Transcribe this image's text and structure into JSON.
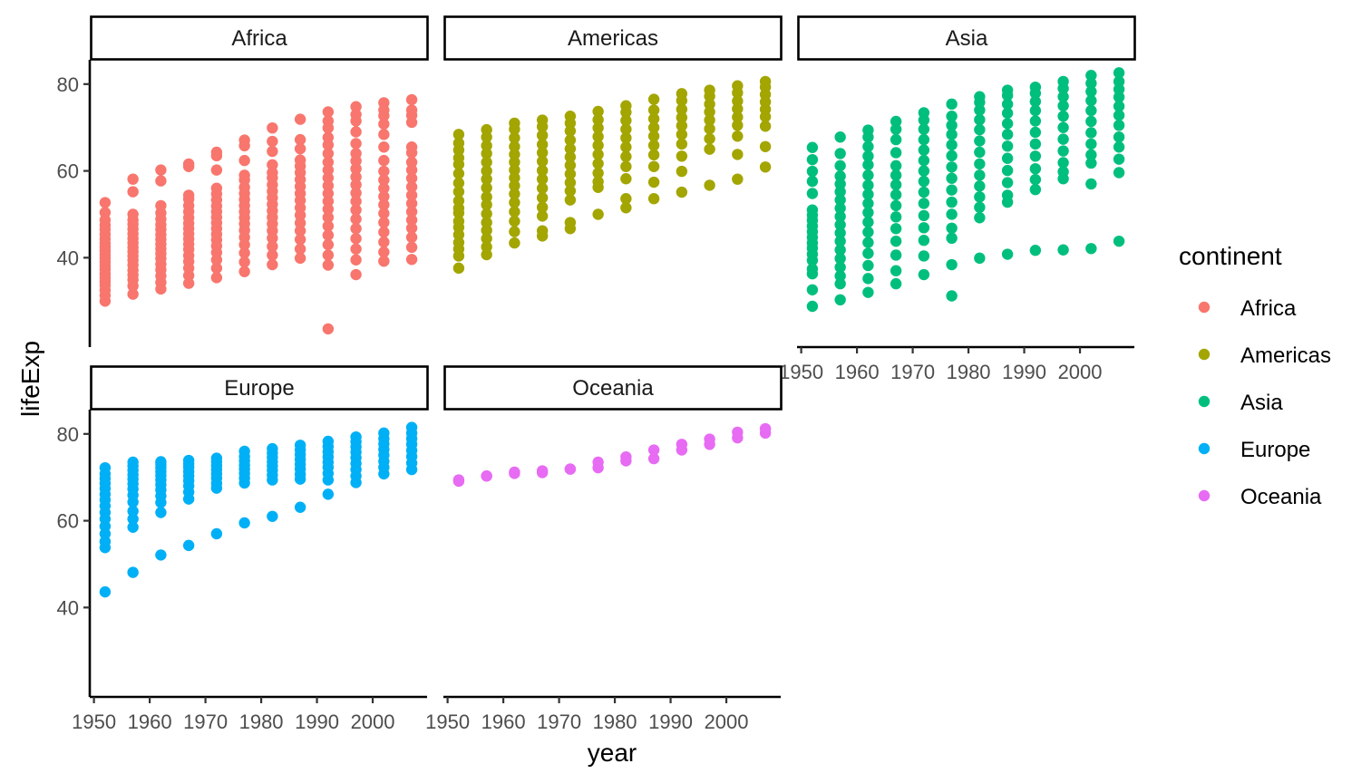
{
  "chart_data": {
    "type": "scatter",
    "facet_by": "continent",
    "xlabel": "year",
    "ylabel": "lifeExp",
    "xlim": [
      1949.25,
      2009.75
    ],
    "ylim": [
      19.4,
      85.6
    ],
    "x_ticks": [
      1950,
      1960,
      1970,
      1980,
      1990,
      2000
    ],
    "y_ticks": [
      40,
      60,
      80
    ],
    "legend": {
      "title": "continent",
      "position": "right"
    },
    "grid": false,
    "series": [
      {
        "name": "Africa",
        "color": "#F8766D",
        "columns": [
          {
            "year": 1952,
            "values": [
              30.0,
              31.3,
              32.5,
              33.6,
              34.5,
              35.4,
              36.3,
              37.3,
              38.1,
              39.0,
              39.9,
              40.7,
              41.6,
              42.5,
              43.3,
              44.3,
              45.4,
              46.5,
              47.5,
              48.7,
              50.4,
              52.7
            ]
          },
          {
            "year": 1957,
            "values": [
              31.6,
              33.5,
              34.9,
              36.0,
              37.1,
              38.3,
              39.4,
              40.4,
              41.4,
              42.4,
              43.4,
              44.4,
              45.5,
              46.6,
              47.7,
              48.7,
              50.0,
              55.2,
              58.1
            ]
          },
          {
            "year": 1962,
            "values": [
              32.8,
              34.3,
              35.8,
              37.2,
              38.5,
              39.8,
              40.9,
              42.0,
              43.1,
              44.2,
              45.3,
              46.5,
              47.6,
              48.9,
              50.3,
              52.0,
              57.7,
              60.2
            ]
          },
          {
            "year": 1967,
            "values": [
              34.1,
              35.9,
              37.6,
              39.1,
              40.5,
              41.9,
              43.1,
              44.3,
              45.5,
              46.7,
              47.9,
              49.2,
              50.6,
              52.0,
              53.5,
              54.4,
              61.0,
              61.6
            ]
          },
          {
            "year": 1972,
            "values": [
              35.4,
              37.6,
              39.5,
              41.2,
              42.7,
              44.1,
              45.4,
              46.7,
              48.0,
              49.3,
              50.6,
              51.9,
              53.3,
              54.7,
              56.0,
              60.2,
              63.5,
              64.3
            ]
          },
          {
            "year": 1977,
            "values": [
              36.8,
              39.0,
              41.1,
              43.0,
              44.7,
              46.3,
              47.8,
              49.2,
              50.6,
              52.0,
              53.4,
              54.8,
              56.2,
              57.9,
              59.0,
              62.4,
              65.8,
              67.1
            ]
          },
          {
            "year": 1982,
            "values": [
              38.4,
              40.6,
              42.6,
              44.5,
              46.2,
              47.8,
              49.3,
              50.8,
              52.3,
              53.8,
              55.3,
              56.8,
              58.4,
              59.6,
              61.4,
              64.5,
              66.8,
              69.9
            ]
          },
          {
            "year": 1987,
            "values": [
              39.9,
              42.0,
              44.2,
              46.2,
              48.0,
              49.8,
              51.5,
              53.2,
              54.8,
              56.4,
              58.0,
              59.6,
              61.1,
              62.5,
              65.1,
              67.2,
              71.9
            ]
          },
          {
            "year": 1992,
            "values": [
              23.6,
              38.3,
              40.6,
              43.0,
              45.2,
              47.3,
              49.3,
              51.2,
              53.0,
              54.8,
              56.6,
              58.4,
              60.2,
              62.0,
              64.0,
              66.0,
              67.7,
              69.9,
              71.5,
              73.6
            ]
          },
          {
            "year": 1997,
            "values": [
              36.1,
              39.5,
              42.0,
              44.4,
              46.7,
              48.9,
              51.0,
              53.0,
              54.9,
              56.8,
              58.6,
              60.5,
              62.3,
              64.0,
              66.3,
              69.0,
              71.5,
              73.0,
              74.8
            ]
          },
          {
            "year": 2002,
            "values": [
              39.2,
              41.3,
              43.6,
              45.9,
              48.1,
              50.2,
              52.2,
              54.1,
              56.0,
              57.9,
              59.9,
              62.4,
              65.5,
              68.4,
              70.8,
              72.7,
              74.0,
              75.7
            ]
          },
          {
            "year": 2007,
            "values": [
              39.6,
              42.4,
              44.7,
              46.8,
              48.7,
              50.6,
              52.5,
              54.4,
              56.3,
              58.3,
              60.2,
              62.0,
              64.2,
              65.5,
              71.2,
              72.8,
              74.0,
              76.4
            ]
          }
        ]
      },
      {
        "name": "Americas",
        "color": "#A3A500",
        "columns": [
          {
            "year": 1952,
            "values": [
              37.6,
              40.4,
              42.0,
              43.5,
              45.3,
              47.0,
              48.4,
              50.3,
              51.4,
              53.1,
              55.2,
              57.2,
              59.4,
              61.5,
              63.0,
              64.8,
              66.4,
              68.4
            ]
          },
          {
            "year": 1957,
            "values": [
              40.7,
              42.5,
              44.4,
              46.3,
              48.1,
              50.1,
              52.2,
              54.0,
              56.1,
              58.1,
              60.0,
              62.0,
              64.0,
              65.8,
              67.8,
              69.5
            ]
          },
          {
            "year": 1962,
            "values": [
              43.4,
              46.0,
              48.4,
              50.6,
              52.7,
              54.7,
              56.6,
              58.4,
              60.2,
              62.0,
              63.8,
              65.6,
              67.6,
              69.6,
              71.0
            ]
          },
          {
            "year": 1967,
            "values": [
              45.0,
              46.2,
              49.6,
              51.6,
              53.8,
              56.0,
              58.1,
              60.1,
              62.2,
              64.2,
              66.1,
              68.2,
              70.2,
              71.7
            ]
          },
          {
            "year": 1972,
            "values": [
              46.7,
              48.1,
              53.3,
              55.4,
              57.3,
              59.3,
              61.3,
              63.2,
              65.1,
              67.1,
              69.2,
              71.0,
              72.6
            ]
          },
          {
            "year": 1977,
            "values": [
              50.0,
              56.2,
              57.5,
              59.5,
              61.7,
              63.8,
              65.9,
              67.9,
              69.9,
              71.8,
              73.7
            ]
          },
          {
            "year": 1982,
            "values": [
              51.5,
              53.6,
              58.2,
              61.0,
              63.3,
              65.5,
              67.6,
              69.6,
              71.6,
              73.5,
              75.0
            ]
          },
          {
            "year": 1987,
            "values": [
              53.6,
              57.4,
              61.0,
              63.7,
              65.9,
              68.0,
              70.0,
              72.0,
              74.0,
              76.5
            ]
          },
          {
            "year": 1992,
            "values": [
              55.1,
              59.9,
              63.4,
              66.2,
              68.4,
              70.4,
              72.3,
              74.2,
              76.2,
              77.8
            ]
          },
          {
            "year": 1997,
            "values": [
              56.7,
              65.0,
              67.4,
              69.7,
              71.7,
              73.6,
              75.4,
              77.2,
              78.6
            ]
          },
          {
            "year": 2002,
            "values": [
              58.1,
              63.8,
              68.0,
              70.5,
              72.4,
              74.3,
              76.1,
              78.0,
              79.6
            ]
          },
          {
            "year": 2007,
            "values": [
              60.9,
              65.6,
              70.3,
              72.5,
              74.2,
              75.9,
              77.6,
              79.3,
              80.6
            ]
          }
        ]
      },
      {
        "name": "Asia",
        "color": "#00BF7D",
        "columns": [
          {
            "year": 1952,
            "values": [
              28.8,
              32.6,
              36.3,
              37.4,
              39.4,
              40.8,
              42.2,
              43.4,
              44.7,
              46.0,
              47.3,
              48.6,
              49.8,
              51.0,
              54.8,
              57.6,
              59.9,
              62.6,
              65.4
            ]
          },
          {
            "year": 1957,
            "values": [
              30.3,
              34.0,
              35.8,
              37.8,
              39.8,
              41.8,
              43.8,
              45.7,
              47.6,
              49.5,
              51.4,
              53.3,
              55.2,
              57.0,
              58.8,
              61.2,
              64.0,
              67.8
            ]
          },
          {
            "year": 1962,
            "values": [
              32.0,
              35.2,
              38.2,
              41.0,
              43.5,
              45.9,
              48.2,
              50.4,
              52.5,
              54.6,
              56.7,
              59.0,
              61.4,
              63.4,
              65.6,
              67.8,
              69.4
            ]
          },
          {
            "year": 1967,
            "values": [
              34.0,
              37.0,
              40.6,
              43.8,
              46.7,
              49.4,
              52.0,
              54.5,
              56.8,
              59.0,
              61.2,
              64.2,
              67.2,
              69.6,
              71.4
            ]
          },
          {
            "year": 1972,
            "values": [
              36.1,
              40.4,
              44.0,
              46.9,
              49.7,
              52.5,
              55.1,
              57.6,
              60.0,
              62.4,
              64.8,
              67.2,
              69.6,
              71.7,
              73.4
            ]
          },
          {
            "year": 1977,
            "values": [
              31.2,
              38.4,
              44.5,
              46.8,
              50.0,
              52.8,
              55.6,
              58.3,
              60.9,
              63.5,
              66.0,
              68.4,
              70.5,
              72.6,
              75.4
            ]
          },
          {
            "year": 1982,
            "values": [
              39.9,
              49.2,
              51.6,
              54.0,
              56.5,
              59.0,
              61.6,
              64.3,
              66.9,
              69.5,
              71.8,
              74.0,
              75.8,
              77.1
            ]
          },
          {
            "year": 1987,
            "values": [
              40.8,
              52.8,
              54.4,
              57.3,
              60.1,
              62.9,
              65.7,
              68.4,
              70.9,
              73.3,
              75.4,
              77.4,
              78.6
            ]
          },
          {
            "year": 1992,
            "values": [
              41.7,
              55.7,
              58.0,
              60.5,
              63.4,
              66.2,
              68.9,
              71.5,
              73.9,
              76.0,
              77.9,
              79.3
            ]
          },
          {
            "year": 1997,
            "values": [
              41.8,
              58.2,
              59.8,
              61.9,
              64.6,
              67.3,
              70.0,
              72.6,
              75.0,
              77.1,
              79.0,
              80.6
            ]
          },
          {
            "year": 2002,
            "values": [
              42.1,
              57.0,
              61.8,
              63.7,
              66.2,
              68.8,
              71.4,
              73.9,
              76.2,
              78.3,
              80.2,
              82.0
            ]
          },
          {
            "year": 2007,
            "values": [
              43.8,
              59.6,
              62.7,
              65.5,
              67.8,
              70.5,
              72.8,
              74.9,
              77.0,
              78.8,
              80.6,
              82.6
            ]
          }
        ]
      },
      {
        "name": "Europe",
        "color": "#00B0F6",
        "columns": [
          {
            "year": 1952,
            "values": [
              43.6,
              53.8,
              55.2,
              57.0,
              58.7,
              60.4,
              61.9,
              63.4,
              64.8,
              66.1,
              67.4,
              68.6,
              69.7,
              70.8,
              72.2
            ]
          },
          {
            "year": 1957,
            "values": [
              48.1,
              58.5,
              60.4,
              62.2,
              64.3,
              65.9,
              67.3,
              68.5,
              69.6,
              70.6,
              71.6,
              72.6,
              73.5
            ]
          },
          {
            "year": 1962,
            "values": [
              52.1,
              61.9,
              64.2,
              65.7,
              67.1,
              68.3,
              69.4,
              70.4,
              71.3,
              72.2,
              73.0,
              73.6
            ]
          },
          {
            "year": 1967,
            "values": [
              54.3,
              65.0,
              66.6,
              68.0,
              69.2,
              70.3,
              71.3,
              72.3,
              73.1,
              73.9
            ]
          },
          {
            "year": 1972,
            "values": [
              57.0,
              67.5,
              68.6,
              69.8,
              70.8,
              71.8,
              72.7,
              73.6,
              74.4
            ]
          },
          {
            "year": 1977,
            "values": [
              59.5,
              68.7,
              69.8,
              70.9,
              71.9,
              72.8,
              73.8,
              74.8,
              76.0
            ]
          },
          {
            "year": 1982,
            "values": [
              61.0,
              69.4,
              70.5,
              71.6,
              72.6,
              73.6,
              74.6,
              75.6,
              76.6
            ]
          },
          {
            "year": 1987,
            "values": [
              63.1,
              69.6,
              70.7,
              71.9,
              73.0,
              74.1,
              75.2,
              76.3,
              77.4
            ]
          },
          {
            "year": 1992,
            "values": [
              66.1,
              69.4,
              70.9,
              72.3,
              73.5,
              74.7,
              75.9,
              77.1,
              78.3
            ]
          },
          {
            "year": 1997,
            "values": [
              68.8,
              70.3,
              71.8,
              73.2,
              74.5,
              75.8,
              77.0,
              78.2,
              79.3
            ]
          },
          {
            "year": 2002,
            "values": [
              70.8,
              72.3,
              73.7,
              75.1,
              76.4,
              77.7,
              78.9,
              80.2
            ]
          },
          {
            "year": 2007,
            "values": [
              71.8,
              73.3,
              74.8,
              76.2,
              77.6,
              78.9,
              80.2,
              81.5
            ]
          }
        ]
      },
      {
        "name": "Oceania",
        "color": "#E76BF3",
        "columns": [
          {
            "year": 1952,
            "values": [
              69.1,
              69.4
            ]
          },
          {
            "year": 1957,
            "values": [
              70.3,
              70.3
            ]
          },
          {
            "year": 1962,
            "values": [
              70.9,
              71.2
            ]
          },
          {
            "year": 1967,
            "values": [
              71.1,
              71.5
            ]
          },
          {
            "year": 1972,
            "values": [
              71.9,
              71.9
            ]
          },
          {
            "year": 1977,
            "values": [
              72.2,
              73.5
            ]
          },
          {
            "year": 1982,
            "values": [
              73.8,
              74.7
            ]
          },
          {
            "year": 1987,
            "values": [
              74.3,
              76.3
            ]
          },
          {
            "year": 1992,
            "values": [
              76.3,
              77.6
            ]
          },
          {
            "year": 1997,
            "values": [
              77.6,
              78.8
            ]
          },
          {
            "year": 2002,
            "values": [
              79.1,
              80.4
            ]
          },
          {
            "year": 2007,
            "values": [
              80.2,
              81.2
            ]
          }
        ]
      }
    ]
  }
}
